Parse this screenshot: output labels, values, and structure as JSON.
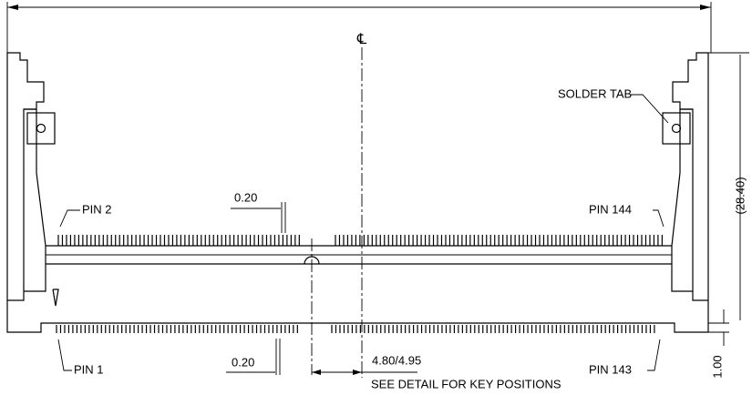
{
  "centerline_label": "℄",
  "callouts": {
    "solder_tab": "SOLDER TAB",
    "pin_2": "PIN 2",
    "pin_144": "PIN 144",
    "pin_1": "PIN 1",
    "pin_143": "PIN 143"
  },
  "dimensions": {
    "height": "(28.40)",
    "pin_width_top": "0.20",
    "pin_width_bottom": "0.20",
    "key_offset": "4.80/4.95",
    "board_offset": "1.00"
  },
  "note": "SEE DETAIL FOR KEY POSITIONS"
}
